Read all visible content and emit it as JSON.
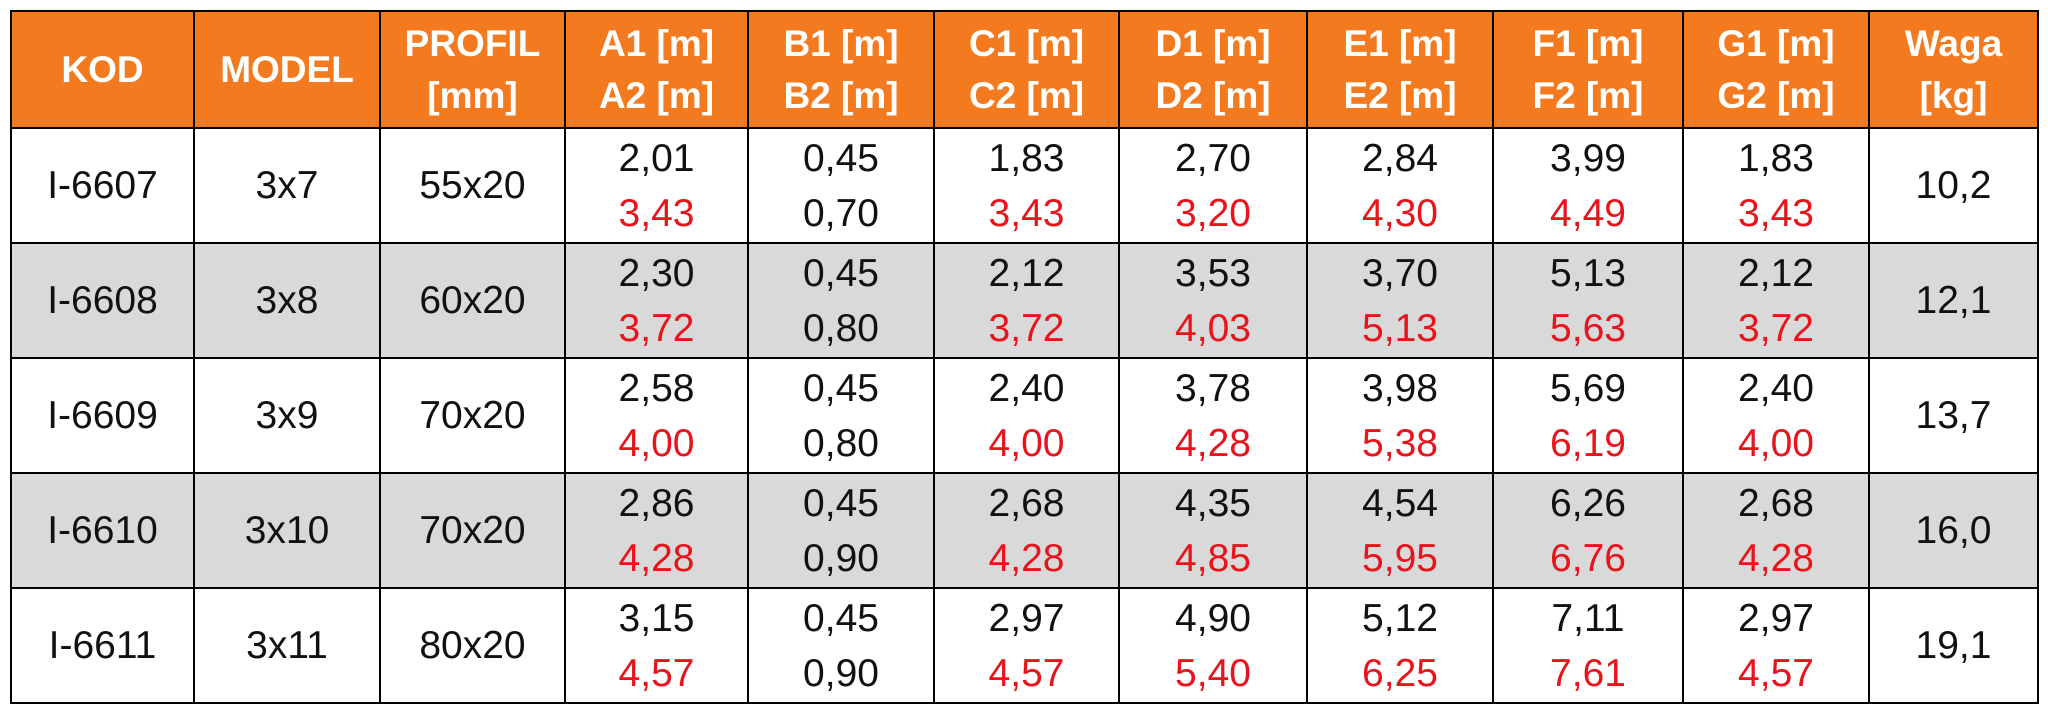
{
  "table": {
    "header": [
      [
        "KOD"
      ],
      [
        "MODEL"
      ],
      [
        "PROFIL",
        "[mm]"
      ],
      [
        "A1 [m]",
        "A2 [m]"
      ],
      [
        "B1 [m]",
        "B2 [m]"
      ],
      [
        "C1 [m]",
        "C2 [m]"
      ],
      [
        "D1 [m]",
        "D2 [m]"
      ],
      [
        "E1 [m]",
        "E2 [m]"
      ],
      [
        "F1 [m]",
        "F2 [m]"
      ],
      [
        "G1 [m]",
        "G2 [m]"
      ],
      [
        "Waga",
        "[kg]"
      ]
    ],
    "rows": [
      {
        "kod": "I-6607",
        "model": "3x7",
        "profil": "55x20",
        "dims": [
          [
            "2,01",
            "3,43"
          ],
          [
            "0,45",
            "0,70"
          ],
          [
            "1,83",
            "3,43"
          ],
          [
            "2,70",
            "3,20"
          ],
          [
            "2,84",
            "4,30"
          ],
          [
            "3,99",
            "4,49"
          ],
          [
            "1,83",
            "3,43"
          ]
        ],
        "waga": "10,2"
      },
      {
        "kod": "I-6608",
        "model": "3x8",
        "profil": "60x20",
        "dims": [
          [
            "2,30",
            "3,72"
          ],
          [
            "0,45",
            "0,80"
          ],
          [
            "2,12",
            "3,72"
          ],
          [
            "3,53",
            "4,03"
          ],
          [
            "3,70",
            "5,13"
          ],
          [
            "5,13",
            "5,63"
          ],
          [
            "2,12",
            "3,72"
          ]
        ],
        "waga": "12,1"
      },
      {
        "kod": "I-6609",
        "model": "3x9",
        "profil": "70x20",
        "dims": [
          [
            "2,58",
            "4,00"
          ],
          [
            "0,45",
            "0,80"
          ],
          [
            "2,40",
            "4,00"
          ],
          [
            "3,78",
            "4,28"
          ],
          [
            "3,98",
            "5,38"
          ],
          [
            "5,69",
            "6,19"
          ],
          [
            "2,40",
            "4,00"
          ]
        ],
        "waga": "13,7"
      },
      {
        "kod": "I-6610",
        "model": "3x10",
        "profil": "70x20",
        "dims": [
          [
            "2,86",
            "4,28"
          ],
          [
            "0,45",
            "0,90"
          ],
          [
            "2,68",
            "4,28"
          ],
          [
            "4,35",
            "4,85"
          ],
          [
            "4,54",
            "5,95"
          ],
          [
            "6,26",
            "6,76"
          ],
          [
            "2,68",
            "4,28"
          ]
        ],
        "waga": "16,0"
      },
      {
        "kod": "I-6611",
        "model": "3x11",
        "profil": "80x20",
        "dims": [
          [
            "3,15",
            "4,57"
          ],
          [
            "0,45",
            "0,90"
          ],
          [
            "2,97",
            "4,57"
          ],
          [
            "4,90",
            "5,40"
          ],
          [
            "5,12",
            "6,25"
          ],
          [
            "7,11",
            "7,61"
          ],
          [
            "2,97",
            "4,57"
          ]
        ],
        "waga": "19,1"
      }
    ]
  }
}
